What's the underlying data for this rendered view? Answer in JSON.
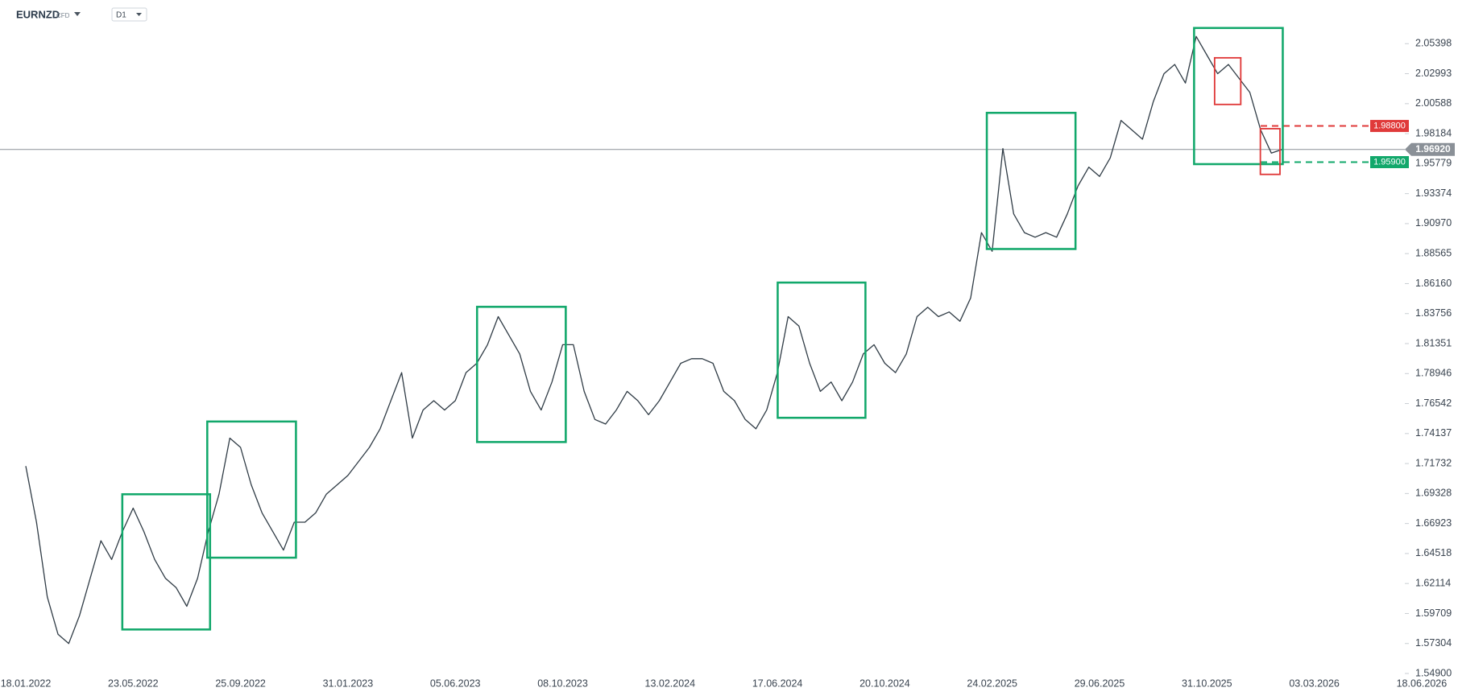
{
  "header": {
    "symbol": "EURNZD",
    "instrument": "CFD",
    "timeframe": "D1"
  },
  "chart_data": {
    "type": "line",
    "categories": [
      "18.01.2022",
      null,
      null,
      null,
      null,
      null,
      null,
      null,
      null,
      null,
      "23.05.2022",
      null,
      null,
      null,
      null,
      null,
      null,
      null,
      null,
      null,
      "25.09.2022",
      null,
      null,
      null,
      null,
      null,
      null,
      null,
      null,
      null,
      "31.01.2023",
      null,
      null,
      null,
      null,
      null,
      null,
      null,
      null,
      null,
      "05.06.2023",
      null,
      null,
      null,
      null,
      null,
      null,
      null,
      null,
      null,
      "08.10.2023",
      null,
      null,
      null,
      null,
      null,
      null,
      null,
      null,
      null,
      "13.02.2024",
      null,
      null,
      null,
      null,
      null,
      null,
      null,
      null,
      null,
      "17.06.2024",
      null,
      null,
      null,
      null,
      null,
      null,
      null,
      null,
      null,
      "20.10.2024",
      null,
      null,
      null,
      null,
      null,
      null,
      null,
      null,
      null,
      "24.02.2025",
      null,
      null,
      null,
      null,
      null,
      null,
      null,
      null,
      null,
      "29.06.2025",
      null,
      null,
      null,
      null,
      null,
      null,
      null,
      null,
      null,
      "31.10.2025",
      null,
      null,
      null,
      null,
      null,
      null,
      null,
      null,
      null,
      "03.03.2026",
      null,
      null,
      null,
      null,
      null,
      null,
      null,
      null,
      null,
      "18.06.2026"
    ],
    "values": [
      1.7153,
      1.6703,
      1.6104,
      1.5805,
      1.573,
      1.5954,
      1.6254,
      1.6554,
      1.6404,
      1.6628,
      1.6816,
      1.6628,
      1.6404,
      1.6254,
      1.6179,
      1.6029,
      1.6254,
      1.6628,
      1.6928,
      1.7377,
      1.7303,
      1.7003,
      1.6778,
      1.6628,
      1.6479,
      1.6703,
      1.6703,
      1.6778,
      1.6928,
      1.7003,
      1.7078,
      1.719,
      1.7303,
      1.7452,
      1.7677,
      1.7902,
      1.7377,
      1.7602,
      1.7677,
      1.7602,
      1.7677,
      1.7902,
      1.7977,
      1.8126,
      1.8351,
      1.8201,
      1.8052,
      1.7752,
      1.7602,
      1.7827,
      1.8126,
      1.8126,
      1.7752,
      1.7527,
      1.749,
      1.7602,
      1.7752,
      1.7677,
      1.7565,
      1.7677,
      1.7827,
      1.7977,
      1.8014,
      1.8014,
      1.7977,
      1.7752,
      1.7677,
      1.7527,
      1.7452,
      1.7602,
      1.7902,
      1.8351,
      1.8276,
      1.7977,
      1.7752,
      1.7827,
      1.7677,
      1.7827,
      1.8052,
      1.8126,
      1.7977,
      1.7902,
      1.8052,
      1.8351,
      1.8426,
      1.8351,
      1.8389,
      1.8314,
      1.8501,
      1.9025,
      1.8875,
      1.9699,
      1.9175,
      1.9025,
      1.8988,
      1.9025,
      1.8988,
      1.9175,
      1.94,
      1.955,
      1.9475,
      1.9624,
      1.9924,
      1.9849,
      1.9774,
      2.0074,
      2.0299,
      2.0373,
      2.0224,
      2.0598,
      2.0448,
      2.0299,
      2.0373,
      2.0261,
      2.0149,
      1.9849,
      1.9662,
      1.9692,
      null,
      null,
      null,
      null,
      null,
      null,
      null,
      null,
      null,
      null,
      null,
      null,
      null
    ],
    "color": "#2f3b45",
    "ylim": [
      1.549,
      2.089
    ],
    "yticks": [
      {
        "value": 1.549,
        "label": "1.54900"
      },
      1.57304,
      1.59709,
      1.62114,
      1.64518,
      1.66923,
      1.69328,
      1.71732,
      1.74137,
      1.76542,
      1.78946,
      1.81351,
      1.83756,
      {
        "value": 1.8616,
        "label": "1.86160"
      },
      1.88565,
      {
        "value": 1.9097,
        "label": "1.90970"
      },
      1.93374,
      1.95779,
      1.98184,
      2.00588,
      2.02993,
      2.05398
    ],
    "price_lines": [
      {
        "value": 1.9692,
        "label": "1.96920",
        "color": "#8a9097",
        "style": "solid"
      },
      {
        "value": 1.988,
        "label": "1.98800",
        "color": "#e03a3a",
        "style": "dashed"
      },
      {
        "value": 1.959,
        "label": "1.95900",
        "color": "#12a86b",
        "style": "dashed"
      }
    ]
  }
}
